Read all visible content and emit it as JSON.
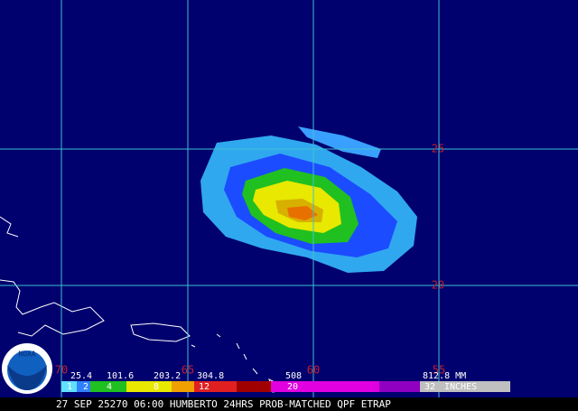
{
  "map": {
    "grid": {
      "latitudes": [
        "25",
        "20"
      ],
      "longitudes": [
        "70",
        "65",
        "60",
        "55"
      ]
    },
    "colorbar": {
      "mm_labels": [
        "25.4",
        "101.6",
        "203.2",
        "304.8",
        "508",
        "812.8 MM"
      ],
      "inch_labels": [
        "1",
        "2",
        "4",
        "8",
        "12",
        "20",
        "32",
        "INCHES"
      ]
    },
    "caption": "27 SEP 25270 06:00 HUMBERTO 24HRS PROB-MATCHED QPF ETRAP",
    "logo": "NOAA"
  }
}
